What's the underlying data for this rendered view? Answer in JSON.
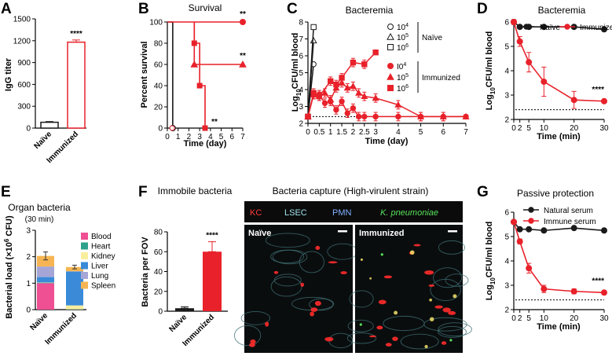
{
  "colors": {
    "red": "#e8212a",
    "black": "#1a1a1a",
    "micro_bg": "#0b0b0b",
    "kc": "#ff3a3a",
    "lsec": "#9fe3ec",
    "pmn": "#7fb0ff",
    "kp": "#57e05a"
  },
  "panels": {
    "A": {
      "label": "A"
    },
    "B": {
      "label": "B"
    },
    "C": {
      "label": "C"
    },
    "D": {
      "label": "D"
    },
    "E": {
      "label": "E"
    },
    "F": {
      "label": "F"
    },
    "G": {
      "label": "G"
    }
  },
  "micro": {
    "title": "Bacteria capture (High-virulent strain)",
    "legend": [
      {
        "text": "KC",
        "color": "#ff3a3a"
      },
      {
        "text": "LSEC",
        "color": "#9fe3ec"
      },
      {
        "text": "PMN",
        "color": "#7fb0ff"
      },
      {
        "text": "K. pneumoniae",
        "color": "#57e05a"
      }
    ],
    "left_label": "Naïve",
    "right_label": "Immunized"
  },
  "chart_data": [
    {
      "panel": "A",
      "type": "bar",
      "title": "",
      "categories": [
        "Naïve",
        "Immunized"
      ],
      "values": [
        80,
        1180
      ],
      "errors": [
        10,
        30
      ],
      "ylabel": "IgG titer",
      "ylim": [
        0,
        1500
      ],
      "yticks": [
        "0",
        "300",
        "600",
        "900",
        "1200",
        "1500"
      ],
      "annotations": [
        "****"
      ]
    },
    {
      "panel": "B",
      "type": "line",
      "title": "Survival",
      "xlabel": "Time (day)",
      "ylabel": "Percent survival",
      "xlim": [
        0,
        7
      ],
      "ylim": [
        0,
        100
      ],
      "xticks": [
        "0",
        "1",
        "2",
        "3",
        "4",
        "5",
        "6",
        "7"
      ],
      "yticks": [
        "0",
        "20",
        "40",
        "60",
        "80",
        "100"
      ],
      "series": [
        {
          "points": [
            [
              0,
              100
            ],
            [
              0.5,
              100
            ],
            [
              0.5,
              0
            ]
          ],
          "color": "#1a1a1a",
          "marker": "circle-open"
        },
        {
          "points": [
            [
              0,
              100
            ],
            [
              7,
              100
            ]
          ],
          "color": "#e8212a",
          "marker": "circle"
        },
        {
          "points": [
            [
              2.5,
              100
            ],
            [
              2.5,
              60
            ],
            [
              7,
              60
            ]
          ],
          "color": "#e8212a",
          "marker": "triangle"
        },
        {
          "points": [
            [
              2.5,
              100
            ],
            [
              2.5,
              80
            ],
            [
              3,
              80
            ],
            [
              3,
              40
            ],
            [
              3.5,
              40
            ],
            [
              3.5,
              0
            ]
          ],
          "color": "#e8212a",
          "marker": "square"
        }
      ],
      "annotations": [
        "**",
        "**",
        "**"
      ]
    },
    {
      "panel": "C",
      "type": "line",
      "title": "Bacteremia",
      "xlabel": "Time (day)",
      "ylabel": "Log10CFU/ml blood",
      "xlim": [
        0,
        7
      ],
      "ylim": [
        2,
        8
      ],
      "xticks": [
        "0",
        "0.5",
        "1",
        "1.5",
        "2",
        "2.5",
        "3",
        "4",
        "5",
        "6",
        "7"
      ],
      "yticks": [
        "2",
        "3",
        "4",
        "5",
        "6",
        "7",
        "8"
      ],
      "legend_groups": [
        "Naïve",
        "Immunized"
      ],
      "legend_items": [
        "10",
        "10",
        "10",
        "I0",
        "10",
        "10"
      ],
      "legend_exps": [
        "4",
        "5",
        "6",
        "4",
        "5",
        "6"
      ],
      "series": [
        {
          "group": "Naïve",
          "dose": "10^4",
          "marker": "circle-open",
          "color": "#1a1a1a",
          "x": [
            0,
            0.25
          ],
          "y": [
            2.4,
            5.5
          ]
        },
        {
          "group": "Naïve",
          "dose": "10^5",
          "marker": "triangle-open",
          "color": "#1a1a1a",
          "x": [
            0,
            0.25
          ],
          "y": [
            2.4,
            6.9
          ]
        },
        {
          "group": "Naïve",
          "dose": "10^6",
          "marker": "square-open",
          "color": "#1a1a1a",
          "x": [
            0,
            0.25
          ],
          "y": [
            2.4,
            7.7
          ]
        },
        {
          "group": "Immunized",
          "dose": "10^4",
          "marker": "circle",
          "color": "#e8212a",
          "x": [
            0,
            0.25,
            0.5,
            0.75,
            1,
            1.25,
            1.5,
            1.75,
            2,
            2.25,
            2.5,
            3,
            4,
            5,
            6,
            7
          ],
          "y": [
            2.4,
            3.7,
            3.7,
            3.2,
            3.3,
            2.8,
            3.3,
            2.6,
            2.9,
            2.4,
            2.4,
            2.4,
            2.4,
            2.4,
            2.4,
            2.4
          ]
        },
        {
          "group": "Immunized",
          "dose": "10^5",
          "marker": "triangle",
          "color": "#e8212a",
          "x": [
            0,
            0.25,
            0.5,
            0.75,
            1,
            1.25,
            1.5,
            1.75,
            2,
            2.25,
            2.5,
            3,
            4,
            5,
            6,
            7
          ],
          "y": [
            2.4,
            3.7,
            3.6,
            3.8,
            3.4,
            4.1,
            4.4,
            4.1,
            4.2,
            3.8,
            3.6,
            3.5,
            3.1,
            2.4,
            2.4,
            2.4
          ]
        },
        {
          "group": "Immunized",
          "dose": "10^6",
          "marker": "square",
          "color": "#e8212a",
          "x": [
            0,
            0.25,
            0.5,
            1,
            1.25,
            1.5,
            2,
            2.5,
            3
          ],
          "y": [
            2.4,
            3.8,
            3.6,
            4.5,
            4.3,
            4.7,
            5.6,
            5.5,
            6.2
          ]
        }
      ],
      "detection_limit": 2.4
    },
    {
      "panel": "D",
      "type": "line",
      "title": "Bacteremia",
      "xlabel": "Time (min)",
      "ylabel": "Log10CFU/ml blood",
      "xlim": [
        0,
        30
      ],
      "ylim": [
        2,
        6
      ],
      "xticks": [
        "0",
        "2",
        "5",
        "10",
        "20",
        "30"
      ],
      "yticks": [
        "2",
        "3",
        "4",
        "5",
        "6"
      ],
      "series": [
        {
          "name": "Naïve",
          "color": "#1a1a1a",
          "x": [
            0,
            2,
            5,
            10,
            20,
            30
          ],
          "y": [
            6.0,
            5.8,
            5.8,
            5.8,
            5.8,
            5.7
          ]
        },
        {
          "name": "Immunized",
          "color": "#e8212a",
          "x": [
            0,
            2,
            5,
            10,
            20,
            30
          ],
          "y": [
            6.0,
            5.2,
            4.35,
            3.55,
            2.8,
            2.75
          ],
          "errors": [
            0.1,
            0.2,
            0.4,
            0.6,
            0.35,
            0.05
          ]
        }
      ],
      "detection_limit": 2.4,
      "annotations": [
        "****"
      ]
    },
    {
      "panel": "E",
      "type": "bar",
      "title": "Organ bacteria",
      "subtitle": "(30 min)",
      "ylabel": "Bacterial load (×10",
      "ylabel_exp": "6",
      "ylabel_end": " CFU)",
      "categories": [
        "Naïve",
        "Immunized"
      ],
      "ylim": [
        0,
        3
      ],
      "yticks": [
        "0",
        "1",
        "2",
        "3"
      ],
      "series": [
        {
          "name": "Blood",
          "color": "#ef4f93",
          "values": [
            1.0,
            0
          ]
        },
        {
          "name": "Heart",
          "color": "#2ea18a",
          "values": [
            0.02,
            0.01
          ]
        },
        {
          "name": "Kidney",
          "color": "#f8ee9e",
          "values": [
            0.01,
            0.15
          ]
        },
        {
          "name": "Liver",
          "color": "#3a8ad8",
          "values": [
            0.2,
            1.28
          ]
        },
        {
          "name": "Lung",
          "color": "#a5a6d6",
          "values": [
            0.4,
            0.01
          ]
        },
        {
          "name": "Spleen",
          "color": "#f6b552",
          "values": [
            0.4,
            0.16
          ]
        }
      ],
      "totals_err": [
        0.15,
        0.07
      ]
    },
    {
      "panel": "F",
      "type": "bar",
      "title": "Immobile bacteria",
      "ylabel": "Bacteria per FOV",
      "categories": [
        "Naïve",
        "Immunized"
      ],
      "values": [
        3,
        60
      ],
      "errors": [
        1.5,
        10
      ],
      "colors": [
        "#1a1a1a",
        "#e8212a"
      ],
      "ylim": [
        0,
        80
      ],
      "yticks": [
        "0",
        "20",
        "40",
        "60",
        "80"
      ],
      "annotations": [
        "****"
      ]
    },
    {
      "panel": "G",
      "type": "line",
      "title": "Passive protection",
      "xlabel": "Time (min)",
      "ylabel": "Log10CFU/ml blood",
      "xlim": [
        0,
        30
      ],
      "ylim": [
        2,
        6
      ],
      "xticks": [
        "0",
        "2",
        "5",
        "10",
        "20",
        "30"
      ],
      "yticks": [
        "2",
        "3",
        "4",
        "5",
        "6"
      ],
      "series": [
        {
          "name": "Natural serum",
          "color": "#1a1a1a",
          "x": [
            0,
            2,
            5,
            10,
            20,
            30
          ],
          "y": [
            5.6,
            5.3,
            5.3,
            5.25,
            5.35,
            5.25
          ]
        },
        {
          "name": "Immune serum",
          "color": "#e8212a",
          "x": [
            0,
            2,
            5,
            10,
            20,
            30
          ],
          "y": [
            5.6,
            4.8,
            3.7,
            2.85,
            2.75,
            2.7
          ],
          "errors": [
            0.05,
            0.1,
            0.2,
            0.15,
            0.1,
            0.05
          ]
        }
      ],
      "detection_limit": 2.4,
      "annotations": [
        "****"
      ]
    }
  ]
}
